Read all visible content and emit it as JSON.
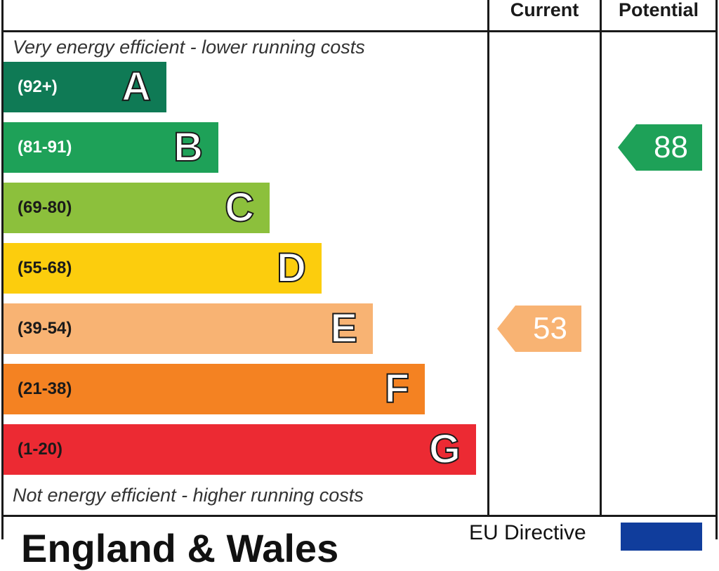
{
  "header": {
    "current_label": "Current",
    "potential_label": "Potential"
  },
  "notes": {
    "top": "Very energy efficient - lower running costs",
    "bottom": "Not energy efficient - higher running costs"
  },
  "footer": {
    "title": "England & Wales",
    "directive": "EU Directive"
  },
  "chart_data": {
    "type": "bar",
    "bands": [
      {
        "letter": "A",
        "range": "(92+)",
        "color": "#0f7a55",
        "range_color": "#ffffff"
      },
      {
        "letter": "B",
        "range": "(81-91)",
        "color": "#1ea158",
        "range_color": "#ffffff"
      },
      {
        "letter": "C",
        "range": "(69-80)",
        "color": "#8cc03c",
        "range_color": "#1a1a1a"
      },
      {
        "letter": "D",
        "range": "(55-68)",
        "color": "#fccd0d",
        "range_color": "#1a1a1a"
      },
      {
        "letter": "E",
        "range": "(39-54)",
        "color": "#f8b373",
        "range_color": "#1a1a1a"
      },
      {
        "letter": "F",
        "range": "(21-38)",
        "color": "#f48222",
        "range_color": "#1a1a1a"
      },
      {
        "letter": "G",
        "range": "(1-20)",
        "color": "#ec2a33",
        "range_color": "#1a1a1a"
      }
    ],
    "current": {
      "value": 53,
      "band": "E",
      "color": "#f8b373"
    },
    "potential": {
      "value": 88,
      "band": "B",
      "color": "#1ea158"
    }
  }
}
